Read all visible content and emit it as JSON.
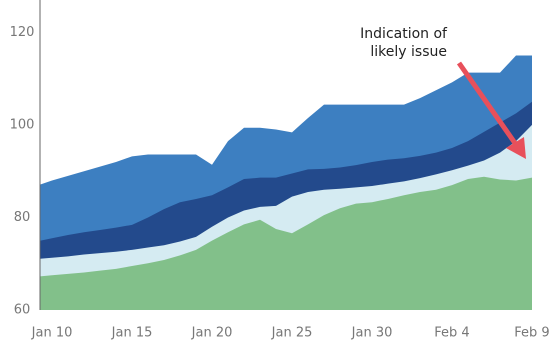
{
  "chart_data": {
    "type": "area",
    "categories": [
      null,
      "Jan 10",
      null,
      null,
      null,
      null,
      "Jan 15",
      null,
      null,
      null,
      null,
      "Jan 20",
      null,
      null,
      null,
      null,
      "Jan 25",
      null,
      null,
      null,
      null,
      "Jan 30",
      null,
      null,
      null,
      null,
      "Feb 4",
      null,
      null,
      null,
      null,
      "Feb 9"
    ],
    "series": [
      {
        "color": "#82c08a",
        "values": [
          67.2,
          67.5,
          67.8,
          68.1,
          68.5,
          68.9,
          69.5,
          70.1,
          70.8,
          71.8,
          73,
          75,
          76.8,
          78.5,
          79.5,
          77.5,
          76.6,
          78.5,
          80.5,
          82,
          83,
          83.3,
          84,
          84.8,
          85.5,
          86,
          87,
          88.3,
          88.8,
          88.2,
          88,
          88.6
        ]
      },
      {
        "color": "#d5ebf2",
        "values": [
          71,
          71.3,
          71.6,
          72,
          72.3,
          72.6,
          73,
          73.5,
          74,
          74.8,
          75.8,
          78,
          80,
          81.5,
          82.3,
          82.5,
          84.5,
          85.5,
          86,
          86.2,
          86.5,
          86.8,
          87.3,
          87.8,
          88.5,
          89.3,
          90.2,
          91.2,
          92.3,
          94,
          96.5,
          100
        ]
      },
      {
        "color": "#234a8c",
        "values": [
          74.8,
          75.5,
          76.2,
          76.8,
          77.3,
          77.8,
          78.4,
          80,
          81.8,
          83.3,
          84,
          84.8,
          86.5,
          88.3,
          88.6,
          88.6,
          89.5,
          90.4,
          90.5,
          90.8,
          91.3,
          92,
          92.5,
          92.8,
          93.3,
          94,
          95,
          96.5,
          98.5,
          100.5,
          102.5,
          105
        ]
      },
      {
        "color": "#3d7fc1",
        "values": [
          86.8,
          88,
          89,
          90,
          91,
          92,
          93.2,
          93.6,
          93.6,
          93.6,
          93.6,
          91.4,
          96.5,
          99.4,
          99.4,
          99,
          98.4,
          101.5,
          104.4,
          104.4,
          104.4,
          104.4,
          104.4,
          104.4,
          105.8,
          107.5,
          109.2,
          111.3,
          111.3,
          111.3,
          115,
          115
        ]
      }
    ],
    "ylim": [
      60,
      127
    ],
    "yticks": [
      60,
      80,
      100,
      120
    ],
    "annotation": [
      "Indication of",
      "likely issue"
    ]
  }
}
